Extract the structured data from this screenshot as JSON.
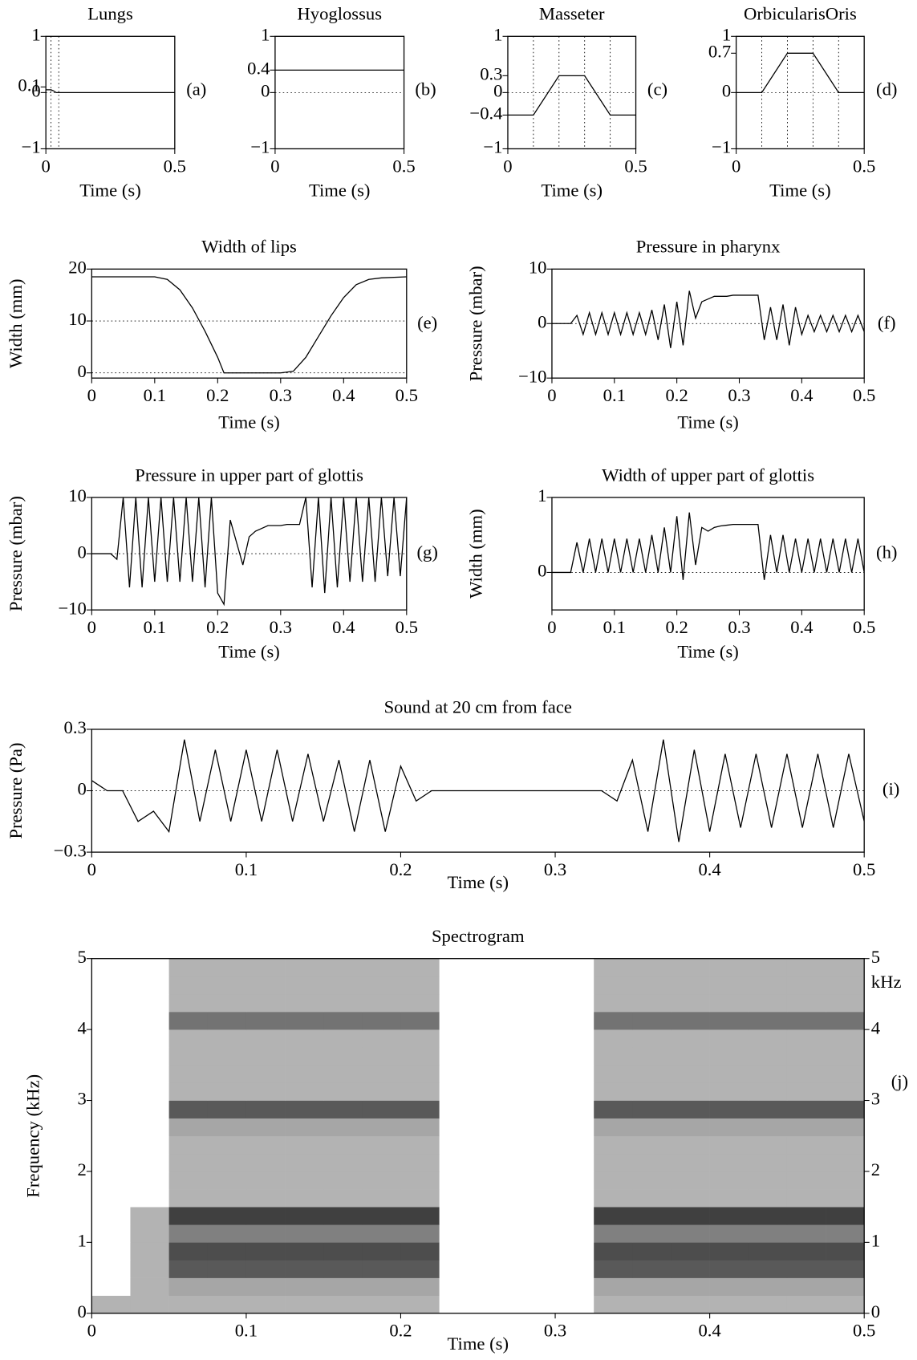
{
  "chart_data": [
    {
      "type": "line",
      "title": "Lungs",
      "xlabel": "Time (s)",
      "label": "(a)",
      "color": "#000000",
      "x": [
        0,
        0.02,
        0.03,
        0.04,
        0.05,
        0.5
      ],
      "values": [
        0.05,
        0.05,
        0.03,
        0,
        0,
        0
      ],
      "xlim": [
        0,
        0.5
      ],
      "ylim": [
        -1,
        1
      ],
      "xticks": [
        0,
        0.5
      ],
      "yticks": [
        {
          "value": -1,
          "label": "−1"
        },
        0,
        0.1,
        1
      ],
      "hlines": [
        0
      ],
      "vlines": [
        0.02,
        0.05
      ]
    },
    {
      "type": "line",
      "title": "Hyoglossus",
      "xlabel": "Time (s)",
      "label": "(b)",
      "color": "#000000",
      "x": [
        0,
        0.5
      ],
      "values": [
        0.4,
        0.4
      ],
      "xlim": [
        0,
        0.5
      ],
      "ylim": [
        -1,
        1
      ],
      "xticks": [
        0,
        0.5
      ],
      "yticks": [
        {
          "value": -1,
          "label": "−1"
        },
        0,
        0.4,
        1
      ],
      "hlines": [
        0
      ],
      "vlines": []
    },
    {
      "type": "line",
      "title": "Masseter",
      "xlabel": "Time (s)",
      "label": "(c)",
      "color": "#000000",
      "x": [
        0,
        0.1,
        0.2,
        0.3,
        0.4,
        0.5
      ],
      "values": [
        -0.4,
        -0.4,
        0.3,
        0.3,
        -0.4,
        -0.4
      ],
      "xlim": [
        0,
        0.5
      ],
      "ylim": [
        -1,
        1
      ],
      "xticks": [
        0,
        0.5
      ],
      "yticks": [
        {
          "value": -1,
          "label": "−1"
        },
        {
          "value": -0.4,
          "label": "−0.4"
        },
        0,
        0.3,
        1
      ],
      "hlines": [
        0
      ],
      "vlines": [
        0.1,
        0.2,
        0.3,
        0.4
      ]
    },
    {
      "type": "line",
      "title": "OrbicularisOris",
      "xlabel": "Time (s)",
      "label": "(d)",
      "color": "#000000",
      "x": [
        0,
        0.1,
        0.2,
        0.3,
        0.4,
        0.5
      ],
      "values": [
        0,
        0,
        0.7,
        0.7,
        0,
        0
      ],
      "xlim": [
        0,
        0.5
      ],
      "ylim": [
        -1,
        1
      ],
      "xticks": [
        0,
        0.5
      ],
      "yticks": [
        {
          "value": -1,
          "label": "−1"
        },
        0,
        0.7,
        1
      ],
      "hlines": [
        0
      ],
      "vlines": [
        0.1,
        0.2,
        0.3,
        0.4
      ]
    },
    {
      "type": "line",
      "title": "Width of lips",
      "xlabel": "Time (s)",
      "ylabel": "Width (mm)",
      "label": "(e)",
      "color": "#000000",
      "x": [
        0,
        0.1,
        0.12,
        0.14,
        0.16,
        0.18,
        0.2,
        0.21,
        0.25,
        0.3,
        0.32,
        0.34,
        0.36,
        0.38,
        0.4,
        0.42,
        0.44,
        0.46,
        0.5
      ],
      "values": [
        18.5,
        18.5,
        18,
        16,
        12.5,
        8,
        3,
        0,
        0,
        0,
        0.3,
        3,
        7,
        11,
        14.5,
        17,
        18,
        18.3,
        18.5
      ],
      "xlim": [
        0,
        0.5
      ],
      "ylim": [
        -1,
        20
      ],
      "xticks": [
        0,
        0.1,
        0.2,
        0.3,
        0.4,
        0.5
      ],
      "yticks": [
        0,
        10,
        20
      ],
      "hlines": [
        0,
        10
      ],
      "vlines": []
    },
    {
      "type": "line",
      "title": "Pressure in pharynx",
      "xlabel": "Time (s)",
      "ylabel": "Pressure (mbar)",
      "label": "(f)",
      "color": "#000000",
      "x": [
        0,
        0.01,
        0.02,
        0.03,
        0.04,
        0.05,
        0.06,
        0.07,
        0.08,
        0.09,
        0.1,
        0.11,
        0.12,
        0.13,
        0.14,
        0.15,
        0.16,
        0.17,
        0.18,
        0.19,
        0.2,
        0.21,
        0.22,
        0.23,
        0.24,
        0.25,
        0.26,
        0.27,
        0.28,
        0.29,
        0.3,
        0.31,
        0.32,
        0.33,
        0.34,
        0.35,
        0.36,
        0.37,
        0.38,
        0.39,
        0.4,
        0.41,
        0.42,
        0.43,
        0.44,
        0.45,
        0.46,
        0.47,
        0.48,
        0.49,
        0.5
      ],
      "values": [
        0,
        0,
        0,
        0,
        1.5,
        -2,
        2,
        -2,
        2,
        -2,
        2,
        -2,
        2,
        -2,
        2,
        -2,
        2.5,
        -3,
        3.5,
        -4.5,
        4,
        -4,
        6,
        1,
        4,
        4.5,
        5,
        5,
        5,
        5.2,
        5.2,
        5.2,
        5.2,
        5.2,
        -3,
        3,
        -3,
        3.5,
        -4,
        3,
        -2,
        1.5,
        -1.5,
        1.5,
        -1.5,
        1.5,
        -1.5,
        1.5,
        -1.5,
        1.5,
        -1.5
      ],
      "xlim": [
        0,
        0.5
      ],
      "ylim": [
        -10,
        10
      ],
      "xticks": [
        0,
        0.1,
        0.2,
        0.3,
        0.4,
        0.5
      ],
      "yticks": [
        {
          "value": -10,
          "label": "−10"
        },
        0,
        10
      ],
      "hlines": [
        0
      ],
      "vlines": []
    },
    {
      "type": "line",
      "title": "Pressure in upper part of glottis",
      "xlabel": "Time (s)",
      "ylabel": "Pressure (mbar)",
      "label": "(g)",
      "color": "#000000",
      "x": [
        0,
        0.01,
        0.02,
        0.03,
        0.04,
        0.05,
        0.06,
        0.07,
        0.08,
        0.09,
        0.1,
        0.11,
        0.12,
        0.13,
        0.14,
        0.15,
        0.16,
        0.17,
        0.18,
        0.19,
        0.2,
        0.21,
        0.22,
        0.23,
        0.24,
        0.25,
        0.26,
        0.27,
        0.28,
        0.29,
        0.3,
        0.31,
        0.32,
        0.33,
        0.34,
        0.35,
        0.36,
        0.37,
        0.38,
        0.39,
        0.4,
        0.41,
        0.42,
        0.43,
        0.44,
        0.45,
        0.46,
        0.47,
        0.48,
        0.49,
        0.5
      ],
      "values": [
        0,
        0,
        0,
        0,
        -1,
        10,
        -6,
        10,
        -6,
        10,
        -5,
        10,
        -5,
        10,
        -5,
        10,
        -5,
        10,
        -6,
        10,
        -7,
        -9,
        6,
        2,
        -2,
        3,
        4,
        4.5,
        5,
        5,
        5,
        5.2,
        5.2,
        5.2,
        10,
        -6,
        10,
        -7,
        10,
        -6,
        10,
        -5,
        10,
        -5,
        10,
        -5,
        10,
        -4,
        10,
        -4,
        10
      ],
      "xlim": [
        0,
        0.5
      ],
      "ylim": [
        -10,
        10
      ],
      "xticks": [
        0,
        0.1,
        0.2,
        0.3,
        0.4,
        0.5
      ],
      "yticks": [
        {
          "value": -10,
          "label": "−10"
        },
        0,
        10
      ],
      "hlines": [
        0
      ],
      "vlines": []
    },
    {
      "type": "line",
      "title": "Width of upper part of glottis",
      "xlabel": "Time (s)",
      "ylabel": "Width (mm)",
      "label": "(h)",
      "color": "#000000",
      "x": [
        0,
        0.01,
        0.02,
        0.03,
        0.04,
        0.05,
        0.06,
        0.07,
        0.08,
        0.09,
        0.1,
        0.11,
        0.12,
        0.13,
        0.14,
        0.15,
        0.16,
        0.17,
        0.18,
        0.19,
        0.2,
        0.21,
        0.22,
        0.23,
        0.24,
        0.25,
        0.26,
        0.27,
        0.28,
        0.29,
        0.3,
        0.31,
        0.32,
        0.33,
        0.34,
        0.35,
        0.36,
        0.37,
        0.38,
        0.39,
        0.4,
        0.41,
        0.42,
        0.43,
        0.44,
        0.45,
        0.46,
        0.47,
        0.48,
        0.49,
        0.5
      ],
      "values": [
        0,
        0,
        0,
        0,
        0.4,
        0,
        0.45,
        0,
        0.45,
        0,
        0.45,
        0,
        0.45,
        0,
        0.45,
        0,
        0.5,
        0,
        0.6,
        0,
        0.75,
        -0.1,
        0.8,
        0.1,
        0.6,
        0.55,
        0.6,
        0.62,
        0.63,
        0.64,
        0.64,
        0.64,
        0.64,
        0.64,
        -0.1,
        0.5,
        0,
        0.5,
        0,
        0.45,
        0,
        0.45,
        0,
        0.45,
        0,
        0.45,
        0,
        0.45,
        0,
        0.45,
        0
      ],
      "xlim": [
        0,
        0.5
      ],
      "ylim": [
        -0.5,
        1
      ],
      "xticks": [
        0,
        0.1,
        0.2,
        0.3,
        0.4,
        0.5
      ],
      "yticks": [
        0,
        1
      ],
      "hlines": [
        0
      ],
      "vlines": []
    },
    {
      "type": "line",
      "title": "Sound at 20 cm from face",
      "xlabel": "Time (s)",
      "ylabel": "Pressure (Pa)",
      "label": "(i)",
      "color": "#000000",
      "x": [
        0,
        0.01,
        0.02,
        0.03,
        0.04,
        0.05,
        0.06,
        0.07,
        0.08,
        0.09,
        0.1,
        0.11,
        0.12,
        0.13,
        0.14,
        0.15,
        0.16,
        0.17,
        0.18,
        0.19,
        0.2,
        0.21,
        0.22,
        0.23,
        0.24,
        0.25,
        0.26,
        0.27,
        0.28,
        0.29,
        0.3,
        0.31,
        0.32,
        0.33,
        0.34,
        0.35,
        0.36,
        0.37,
        0.38,
        0.39,
        0.4,
        0.41,
        0.42,
        0.43,
        0.44,
        0.45,
        0.46,
        0.47,
        0.48,
        0.49,
        0.5
      ],
      "values": [
        0.05,
        0,
        0,
        -0.15,
        -0.1,
        -0.2,
        0.25,
        -0.15,
        0.2,
        -0.15,
        0.2,
        -0.15,
        0.2,
        -0.15,
        0.18,
        -0.15,
        0.15,
        -0.2,
        0.15,
        -0.2,
        0.12,
        -0.05,
        0,
        0,
        0,
        0,
        0,
        0,
        0,
        0,
        0,
        0,
        0,
        0,
        -0.05,
        0.15,
        -0.2,
        0.25,
        -0.25,
        0.2,
        -0.2,
        0.18,
        -0.18,
        0.18,
        -0.18,
        0.18,
        -0.18,
        0.18,
        -0.18,
        0.18,
        -0.15
      ],
      "xlim": [
        0,
        0.5
      ],
      "ylim": [
        -0.3,
        0.3
      ],
      "xticks": [
        0,
        0.1,
        0.2,
        0.3,
        0.4,
        0.5
      ],
      "yticks": [
        {
          "value": -0.3,
          "label": "−0.3"
        },
        0,
        0.3
      ],
      "hlines": [
        0
      ],
      "vlines": []
    },
    {
      "type": "heatmap",
      "title": "Spectrogram",
      "xlabel": "Time (s)",
      "ylabel": "Frequency (kHz)",
      "y2label": "kHz",
      "label": "(j)",
      "x_bins": [
        0,
        0.025,
        0.05,
        0.075,
        0.1,
        0.125,
        0.15,
        0.175,
        0.2,
        0.225,
        0.25,
        0.275,
        0.3,
        0.325,
        0.35,
        0.375,
        0.4,
        0.425,
        0.45,
        0.475,
        0.5
      ],
      "y_bins": [
        0,
        0.25,
        0.5,
        0.75,
        1,
        1.25,
        1.5,
        1.75,
        2,
        2.25,
        2.5,
        2.75,
        3,
        3.25,
        3.5,
        3.75,
        4,
        4.25,
        4.5,
        4.75,
        5
      ],
      "values": [
        [
          0.3,
          0.3,
          0.3,
          0.3,
          0.3,
          0.3,
          0.3,
          0.3,
          0.3,
          0,
          0,
          0,
          0,
          0.3,
          0.3,
          0.3,
          0.3,
          0.3,
          0.3,
          0.3
        ],
        [
          0,
          0.3,
          0.35,
          0.35,
          0.35,
          0.35,
          0.35,
          0.35,
          0.35,
          0,
          0,
          0,
          0,
          0.35,
          0.35,
          0.35,
          0.35,
          0.35,
          0.35,
          0.35
        ],
        [
          0,
          0.3,
          0.65,
          0.65,
          0.65,
          0.65,
          0.65,
          0.65,
          0.65,
          0,
          0,
          0,
          0,
          0.65,
          0.65,
          0.65,
          0.65,
          0.65,
          0.65,
          0.65
        ],
        [
          0,
          0.3,
          0.7,
          0.7,
          0.7,
          0.7,
          0.7,
          0.7,
          0.7,
          0,
          0,
          0,
          0,
          0.7,
          0.7,
          0.7,
          0.7,
          0.7,
          0.7,
          0.7
        ],
        [
          0,
          0.3,
          0.5,
          0.5,
          0.5,
          0.5,
          0.5,
          0.5,
          0.5,
          0,
          0,
          0,
          0,
          0.5,
          0.5,
          0.5,
          0.5,
          0.5,
          0.5,
          0.5
        ],
        [
          0,
          0.3,
          0.75,
          0.75,
          0.75,
          0.75,
          0.75,
          0.75,
          0.75,
          0,
          0,
          0,
          0,
          0.75,
          0.75,
          0.75,
          0.75,
          0.75,
          0.75,
          0.75
        ],
        [
          0,
          0,
          0.3,
          0.3,
          0.3,
          0.3,
          0.3,
          0.3,
          0.3,
          0,
          0,
          0,
          0,
          0.3,
          0.3,
          0.3,
          0.3,
          0.3,
          0.3,
          0.3
        ],
        [
          0,
          0,
          0.3,
          0.3,
          0.3,
          0.3,
          0.3,
          0.3,
          0.3,
          0,
          0,
          0,
          0,
          0.3,
          0.3,
          0.3,
          0.3,
          0.3,
          0.3,
          0.3
        ],
        [
          0,
          0,
          0.3,
          0.3,
          0.3,
          0.3,
          0.3,
          0.3,
          0.3,
          0,
          0,
          0,
          0,
          0.3,
          0.3,
          0.3,
          0.3,
          0.3,
          0.3,
          0.3
        ],
        [
          0,
          0,
          0.3,
          0.3,
          0.3,
          0.3,
          0.3,
          0.3,
          0.3,
          0,
          0,
          0,
          0,
          0.3,
          0.3,
          0.3,
          0.3,
          0.3,
          0.3,
          0.3
        ],
        [
          0,
          0,
          0.35,
          0.35,
          0.35,
          0.35,
          0.35,
          0.35,
          0.35,
          0,
          0,
          0,
          0,
          0.35,
          0.35,
          0.35,
          0.35,
          0.35,
          0.35,
          0.35
        ],
        [
          0,
          0,
          0.65,
          0.65,
          0.65,
          0.65,
          0.65,
          0.65,
          0.65,
          0,
          0,
          0,
          0,
          0.65,
          0.65,
          0.65,
          0.65,
          0.65,
          0.65,
          0.65
        ],
        [
          0,
          0,
          0.3,
          0.3,
          0.3,
          0.3,
          0.3,
          0.3,
          0.3,
          0,
          0,
          0,
          0,
          0.3,
          0.3,
          0.3,
          0.3,
          0.3,
          0.3,
          0.3
        ],
        [
          0,
          0,
          0.3,
          0.3,
          0.3,
          0.3,
          0.3,
          0.3,
          0.3,
          0,
          0,
          0,
          0,
          0.3,
          0.3,
          0.3,
          0.3,
          0.3,
          0.3,
          0.3
        ],
        [
          0,
          0,
          0.3,
          0.3,
          0.3,
          0.3,
          0.3,
          0.3,
          0.3,
          0,
          0,
          0,
          0,
          0.3,
          0.3,
          0.3,
          0.3,
          0.3,
          0.3,
          0.3
        ],
        [
          0,
          0,
          0.3,
          0.3,
          0.3,
          0.3,
          0.3,
          0.3,
          0.3,
          0,
          0,
          0,
          0,
          0.3,
          0.3,
          0.3,
          0.3,
          0.3,
          0.3,
          0.3
        ],
        [
          0,
          0,
          0.55,
          0.55,
          0.55,
          0.55,
          0.55,
          0.55,
          0.55,
          0,
          0,
          0,
          0,
          0.55,
          0.55,
          0.55,
          0.55,
          0.55,
          0.55,
          0.55
        ],
        [
          0,
          0,
          0.3,
          0.3,
          0.3,
          0.3,
          0.3,
          0.3,
          0.3,
          0,
          0,
          0,
          0,
          0.3,
          0.3,
          0.3,
          0.3,
          0.3,
          0.3,
          0.3
        ],
        [
          0,
          0,
          0.3,
          0.3,
          0.3,
          0.3,
          0.3,
          0.3,
          0.3,
          0,
          0,
          0,
          0,
          0.3,
          0.3,
          0.3,
          0.3,
          0.3,
          0.3,
          0.3
        ],
        [
          0,
          0,
          0.3,
          0.3,
          0.3,
          0.3,
          0.3,
          0.3,
          0.3,
          0,
          0,
          0,
          0,
          0.3,
          0.3,
          0.3,
          0.3,
          0.3,
          0.3,
          0.3
        ]
      ],
      "xlim": [
        0,
        0.5
      ],
      "ylim": [
        0,
        5
      ],
      "y2lim": [
        0,
        5
      ],
      "xticks": [
        0,
        0.1,
        0.2,
        0.3,
        0.4,
        0.5
      ],
      "yticks": [
        0,
        1,
        2,
        3,
        4,
        5
      ],
      "y2ticks": [
        0,
        1,
        2,
        3,
        4,
        5
      ],
      "hlines": [],
      "vlines": []
    }
  ]
}
